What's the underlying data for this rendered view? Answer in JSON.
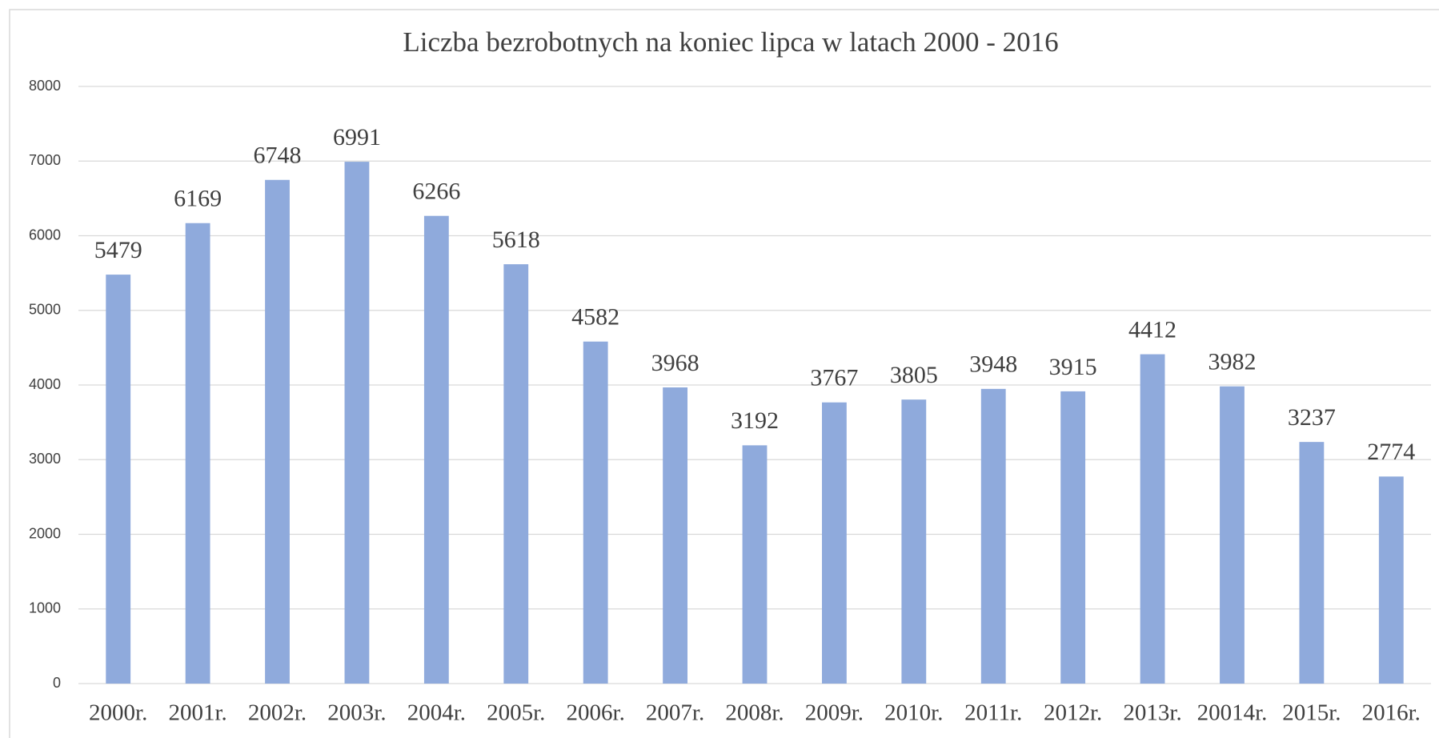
{
  "chart_data": {
    "type": "bar",
    "title": "Liczba bezrobotnych na koniec lipca w latach 2000 - 2016",
    "categories": [
      "2000r.",
      "2001r.",
      "2002r.",
      "2003r.",
      "2004r.",
      "2005r.",
      "2006r.",
      "2007r.",
      "2008r.",
      "2009r.",
      "2010r.",
      "2011r.",
      "2012r.",
      "2013r.",
      "20014r.",
      "2015r.",
      "2016r."
    ],
    "values": [
      5479,
      6169,
      6748,
      6991,
      6266,
      5618,
      4582,
      3968,
      3192,
      3767,
      3805,
      3948,
      3915,
      4412,
      3982,
      3237,
      2774
    ],
    "color": "#8faadc",
    "ylim": [
      0,
      8000
    ],
    "yticks": [
      0,
      1000,
      2000,
      3000,
      4000,
      5000,
      6000,
      7000,
      8000
    ],
    "grid": true
  }
}
